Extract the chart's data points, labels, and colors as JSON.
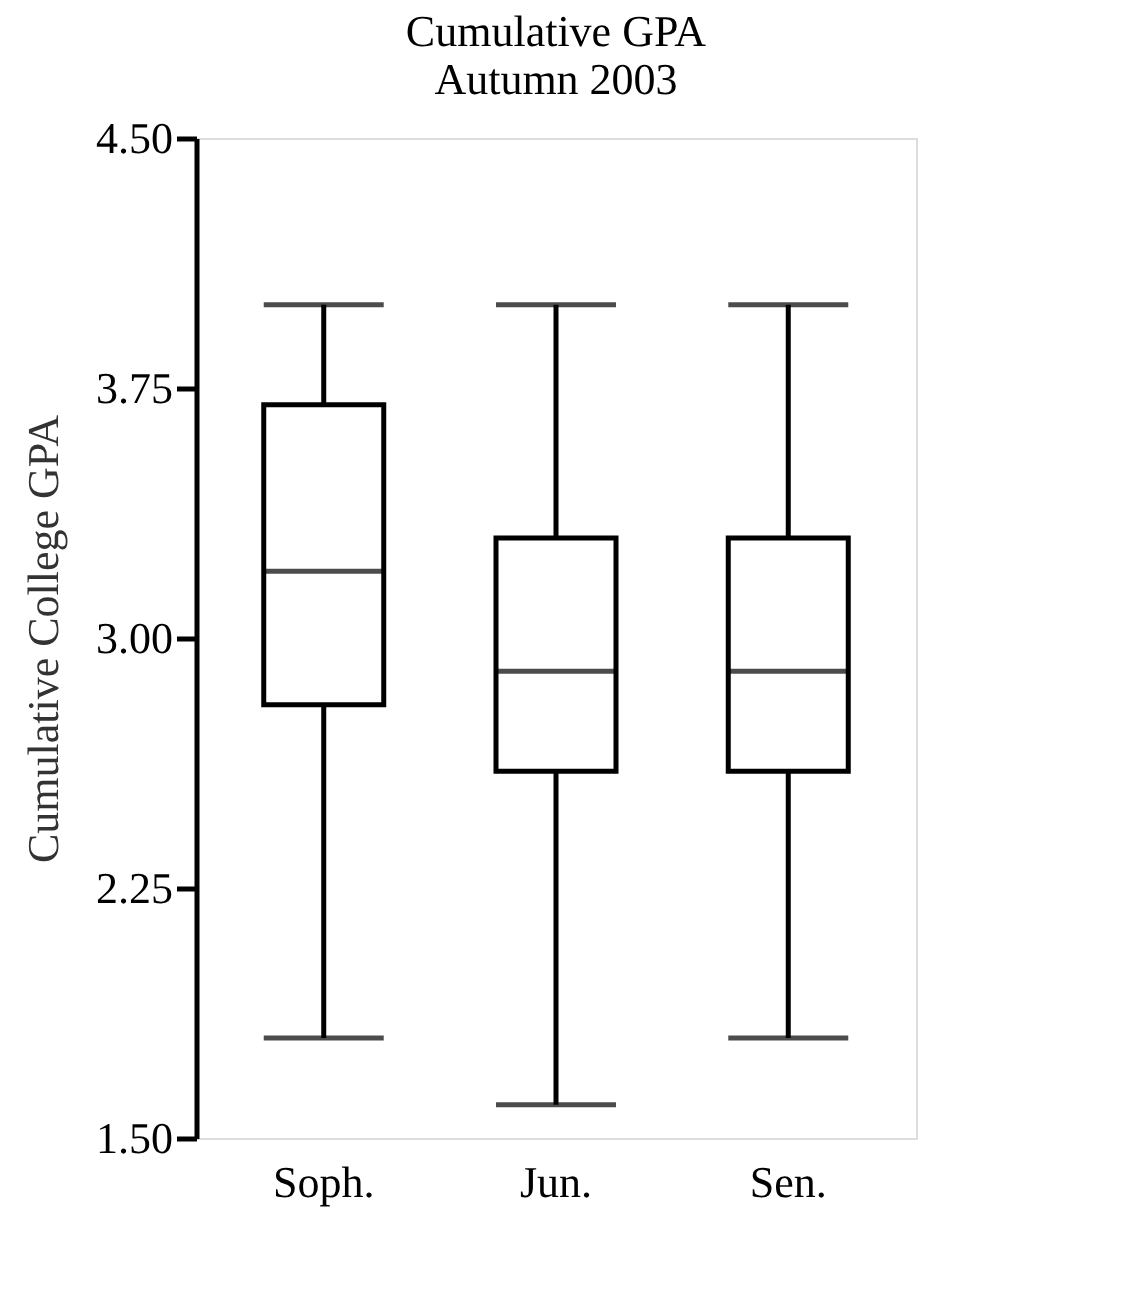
{
  "chart_data": {
    "type": "box",
    "title": "Cumulative GPA\nAutumn 2003",
    "ylabel": "Cumulative College GPA",
    "categories": [
      "Soph.",
      "Jun.",
      "Sen."
    ],
    "boxes": [
      {
        "low": 1.8,
        "q1": 2.8,
        "median": 3.2,
        "q3": 3.7,
        "high": 4.0
      },
      {
        "low": 1.6,
        "q1": 2.6,
        "median": 2.9,
        "q3": 3.3,
        "high": 4.0
      },
      {
        "low": 1.8,
        "q1": 2.6,
        "median": 2.9,
        "q3": 3.3,
        "high": 4.0
      }
    ],
    "ylim": [
      1.5,
      4.5
    ],
    "yticks": [
      {
        "value": 1.5,
        "label": "1.50"
      },
      {
        "value": 2.25,
        "label": "2.25"
      },
      {
        "value": 3.0,
        "label": "3.00"
      },
      {
        "value": 3.75,
        "label": "3.75"
      },
      {
        "value": 4.5,
        "label": "4.50"
      }
    ],
    "color": "#000000",
    "grid": false
  }
}
